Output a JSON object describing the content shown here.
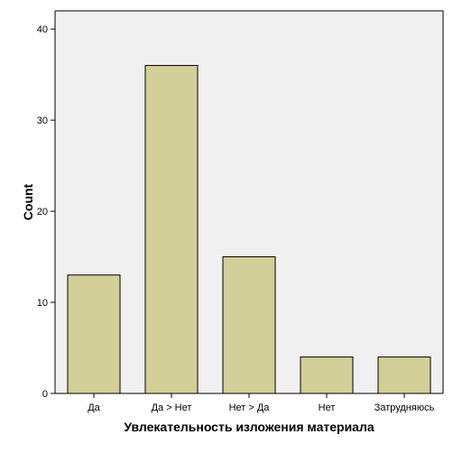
{
  "chart_data": {
    "type": "bar",
    "categories": [
      "Да",
      "Да > Нет",
      "Нет > Да",
      "Нет",
      "Затрудняюсь"
    ],
    "values": [
      13,
      36,
      15,
      4,
      4
    ],
    "xlabel": "Увлекательность изложения материала",
    "ylabel": "Count",
    "ylim": [
      0,
      42
    ],
    "yticks": [
      0,
      10,
      20,
      30,
      40
    ],
    "grid": false,
    "legend": "none",
    "colors": {
      "bar_fill": "#d3cf98",
      "bar_stroke": "#000000",
      "plot_background": "#f0f0f0"
    }
  }
}
